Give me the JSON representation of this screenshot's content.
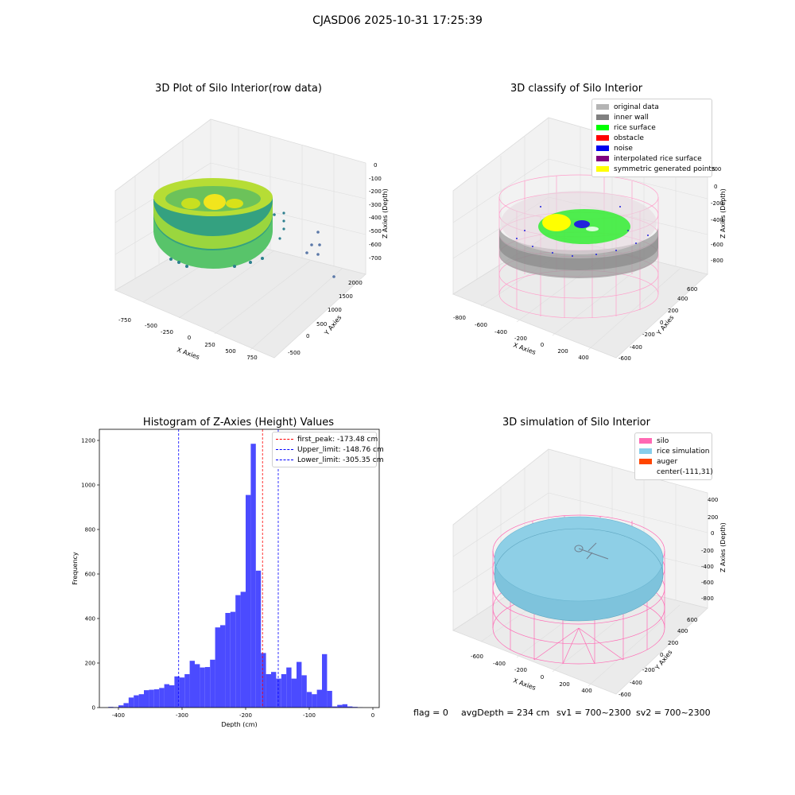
{
  "suptitle": "CJASD06 2025-10-31 17:25:39",
  "panels": {
    "raw": {
      "title": "3D Plot of Silo Interior(row data)",
      "xlabel": "X Axies",
      "ylabel": "Y Axies",
      "zlabel": "Z Axies (Depth)",
      "xticks": [
        "-750",
        "-500",
        "-250",
        "0",
        "250",
        "500",
        "750"
      ],
      "yticks": [
        "-500",
        "0",
        "500",
        "1000",
        "1500",
        "2000"
      ],
      "zticks": [
        "0",
        "-100",
        "-200",
        "-300",
        "-400",
        "-500",
        "-600",
        "-700"
      ]
    },
    "classify": {
      "title": "3D classify of Silo Interior",
      "xlabel": "X Axies",
      "ylabel": "Y Axies",
      "zlabel": "Z Axies (Depth)",
      "xticks": [
        "-800",
        "-600",
        "-400",
        "-200",
        "0",
        "200",
        "400"
      ],
      "yticks": [
        "-600",
        "-400",
        "-200",
        "0",
        "200",
        "400",
        "600"
      ],
      "zticks": [
        "200",
        "0",
        "-200",
        "-400",
        "-600",
        "-800"
      ],
      "legend": [
        {
          "label": "original data",
          "color": "#b4b4b4"
        },
        {
          "label": "inner wall",
          "color": "#808080"
        },
        {
          "label": "rice surface",
          "color": "#00ff00"
        },
        {
          "label": "obstacle",
          "color": "#ff0000"
        },
        {
          "label": "noise",
          "color": "#0000ee"
        },
        {
          "label": "interpolated rice surface",
          "color": "#800080"
        },
        {
          "label": "symmetric generated points",
          "color": "#ffff00"
        }
      ]
    },
    "simulation": {
      "title": "3D simulation of Silo Interior",
      "xlabel": "X Axies",
      "ylabel": "Y Axies",
      "zlabel": "Z Axies (Depth)",
      "xticks": [
        "-600",
        "-400",
        "-200",
        "0",
        "200",
        "400"
      ],
      "yticks": [
        "-600",
        "-400",
        "-200",
        "0",
        "200",
        "400",
        "600"
      ],
      "zticks": [
        "400",
        "200",
        "0",
        "-200",
        "-400",
        "-600",
        "-800"
      ],
      "legend": [
        {
          "label": "silo",
          "color": "#ff69b4"
        },
        {
          "label": "rice simulation",
          "color": "#87ceeb"
        },
        {
          "label": "auger",
          "color": "#ff4500"
        },
        {
          "label": "center(-111,31)",
          "color": ""
        }
      ]
    }
  },
  "footer": {
    "flag": "flag = 0",
    "avg": "avgDepth = 234 cm",
    "sv1": "sv1 = 700~2300",
    "sv2": "sv2 = 700~2300"
  },
  "chart_data": [
    {
      "type": "bar",
      "title": "Histogram of Z-Axies (Height) Values",
      "xlabel": "Depth (cm)",
      "ylabel": "Frequency",
      "xlim": [
        -430,
        10
      ],
      "ylim": [
        0,
        1250
      ],
      "xticks": [
        -400,
        -300,
        -200,
        -100,
        0
      ],
      "yticks": [
        0,
        200,
        400,
        600,
        800,
        1000,
        1200
      ],
      "bar_color": "#4b4bff",
      "bin_width": 8,
      "bin_starts": [
        -416,
        -408,
        -400,
        -392,
        -384,
        -376,
        -368,
        -360,
        -352,
        -344,
        -336,
        -328,
        -320,
        -312,
        -304,
        -296,
        -288,
        -280,
        -272,
        -264,
        -256,
        -248,
        -240,
        -232,
        -224,
        -216,
        -208,
        -200,
        -192,
        -184,
        -176,
        -168,
        -160,
        -152,
        -144,
        -136,
        -128,
        -120,
        -112,
        -104,
        -96,
        -88,
        -80,
        -72,
        -64,
        -56,
        -48,
        -40,
        -32,
        -24,
        -16,
        -8
      ],
      "values": [
        3,
        2,
        10,
        20,
        45,
        55,
        60,
        78,
        80,
        82,
        88,
        105,
        100,
        140,
        135,
        150,
        210,
        195,
        180,
        182,
        215,
        360,
        370,
        425,
        430,
        505,
        520,
        955,
        1185,
        615,
        245,
        150,
        160,
        130,
        150,
        180,
        130,
        205,
        145,
        70,
        60,
        80,
        240,
        75,
        5,
        12,
        15,
        5,
        3,
        1,
        0,
        0
      ],
      "vlines": [
        {
          "x": -173.48,
          "label": "first_peak: -173.48 cm",
          "color": "#ff0000"
        },
        {
          "x": -148.76,
          "label": "Upper_limit: -148.76 cm",
          "color": "#0000ff"
        },
        {
          "x": -305.35,
          "label": "Lower_limit: -305.35 cm",
          "color": "#0000ff"
        }
      ],
      "legend_position": "top-right"
    }
  ]
}
